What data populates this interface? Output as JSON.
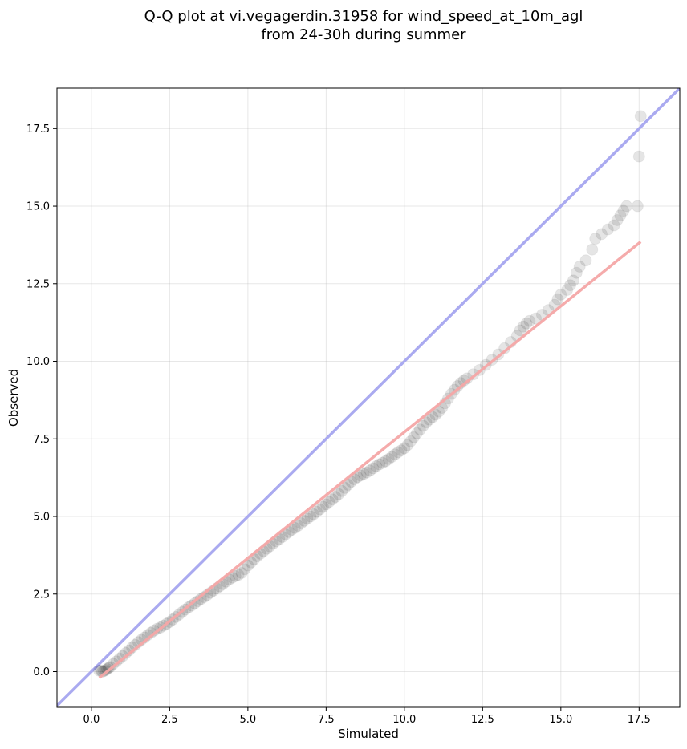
{
  "chart_data": {
    "type": "scatter",
    "title_lines": [
      "Q-Q plot at vi.vegagerdin.31958 for wind_speed_at_10m_agl",
      "from 24-30h during summer"
    ],
    "xlabel": "Simulated",
    "ylabel": "Observed",
    "xlim": [
      -1.1,
      18.8
    ],
    "ylim": [
      -1.15,
      18.8
    ],
    "x_ticks": [
      0.0,
      2.5,
      5.0,
      7.5,
      10.0,
      12.5,
      15.0,
      17.5
    ],
    "x_tick_labels": [
      "0.0",
      "2.5",
      "5.0",
      "7.5",
      "10.0",
      "12.5",
      "15.0",
      "17.5"
    ],
    "y_ticks": [
      0.0,
      2.5,
      5.0,
      7.5,
      10.0,
      12.5,
      15.0,
      17.5
    ],
    "y_tick_labels": [
      "0.0",
      "2.5",
      "5.0",
      "7.5",
      "10.0",
      "12.5",
      "15.0",
      "17.5"
    ],
    "grid": true,
    "series": [
      {
        "points": [
          [
            0.25,
            0.03
          ],
          [
            0.3,
            0.04
          ],
          [
            0.35,
            0.0
          ],
          [
            0.4,
            0.02
          ],
          [
            0.45,
            0.05
          ],
          [
            0.5,
            0.08
          ],
          [
            0.55,
            0.12
          ],
          [
            0.6,
            0.15
          ],
          [
            0.7,
            0.25
          ],
          [
            0.8,
            0.33
          ],
          [
            0.9,
            0.42
          ],
          [
            1.0,
            0.5
          ],
          [
            1.1,
            0.6
          ],
          [
            1.2,
            0.68
          ],
          [
            1.3,
            0.78
          ],
          [
            1.4,
            0.86
          ],
          [
            1.5,
            0.95
          ],
          [
            1.6,
            1.03
          ],
          [
            1.7,
            1.1
          ],
          [
            1.8,
            1.18
          ],
          [
            1.9,
            1.25
          ],
          [
            2.0,
            1.32
          ],
          [
            2.1,
            1.38
          ],
          [
            2.2,
            1.42
          ],
          [
            2.3,
            1.48
          ],
          [
            2.4,
            1.54
          ],
          [
            2.5,
            1.6
          ],
          [
            2.6,
            1.68
          ],
          [
            2.7,
            1.76
          ],
          [
            2.8,
            1.84
          ],
          [
            2.9,
            1.92
          ],
          [
            3.0,
            2.0
          ],
          [
            3.1,
            2.07
          ],
          [
            3.2,
            2.13
          ],
          [
            3.3,
            2.2
          ],
          [
            3.4,
            2.27
          ],
          [
            3.5,
            2.34
          ],
          [
            3.6,
            2.4
          ],
          [
            3.7,
            2.47
          ],
          [
            3.8,
            2.54
          ],
          [
            3.9,
            2.61
          ],
          [
            4.0,
            2.68
          ],
          [
            4.1,
            2.75
          ],
          [
            4.2,
            2.82
          ],
          [
            4.3,
            2.9
          ],
          [
            4.4,
            2.97
          ],
          [
            4.5,
            3.03
          ],
          [
            4.6,
            3.08
          ],
          [
            4.7,
            3.12
          ],
          [
            4.8,
            3.18
          ],
          [
            4.9,
            3.3
          ],
          [
            5.0,
            3.42
          ],
          [
            5.1,
            3.52
          ],
          [
            5.2,
            3.62
          ],
          [
            5.3,
            3.72
          ],
          [
            5.4,
            3.8
          ],
          [
            5.5,
            3.88
          ],
          [
            5.6,
            3.96
          ],
          [
            5.7,
            4.04
          ],
          [
            5.8,
            4.12
          ],
          [
            5.9,
            4.2
          ],
          [
            6.0,
            4.27
          ],
          [
            6.1,
            4.34
          ],
          [
            6.2,
            4.42
          ],
          [
            6.3,
            4.5
          ],
          [
            6.4,
            4.57
          ],
          [
            6.5,
            4.63
          ],
          [
            6.6,
            4.7
          ],
          [
            6.7,
            4.78
          ],
          [
            6.8,
            4.86
          ],
          [
            6.9,
            4.93
          ],
          [
            7.0,
            5.0
          ],
          [
            7.1,
            5.07
          ],
          [
            7.2,
            5.15
          ],
          [
            7.3,
            5.23
          ],
          [
            7.4,
            5.31
          ],
          [
            7.5,
            5.39
          ],
          [
            7.6,
            5.47
          ],
          [
            7.7,
            5.55
          ],
          [
            7.8,
            5.63
          ],
          [
            7.9,
            5.72
          ],
          [
            8.0,
            5.82
          ],
          [
            8.1,
            5.92
          ],
          [
            8.2,
            6.02
          ],
          [
            8.3,
            6.12
          ],
          [
            8.4,
            6.2
          ],
          [
            8.5,
            6.27
          ],
          [
            8.6,
            6.32
          ],
          [
            8.7,
            6.37
          ],
          [
            8.8,
            6.42
          ],
          [
            8.9,
            6.48
          ],
          [
            9.0,
            6.55
          ],
          [
            9.1,
            6.62
          ],
          [
            9.2,
            6.68
          ],
          [
            9.3,
            6.73
          ],
          [
            9.4,
            6.78
          ],
          [
            9.5,
            6.85
          ],
          [
            9.6,
            6.92
          ],
          [
            9.7,
            7.0
          ],
          [
            9.8,
            7.07
          ],
          [
            9.9,
            7.13
          ],
          [
            10.0,
            7.2
          ],
          [
            10.1,
            7.3
          ],
          [
            10.2,
            7.42
          ],
          [
            10.3,
            7.55
          ],
          [
            10.4,
            7.68
          ],
          [
            10.5,
            7.8
          ],
          [
            10.6,
            7.92
          ],
          [
            10.7,
            8.03
          ],
          [
            10.8,
            8.12
          ],
          [
            10.9,
            8.2
          ],
          [
            11.0,
            8.28
          ],
          [
            11.1,
            8.38
          ],
          [
            11.2,
            8.5
          ],
          [
            11.3,
            8.65
          ],
          [
            11.4,
            8.8
          ],
          [
            11.5,
            8.95
          ],
          [
            11.6,
            9.08
          ],
          [
            11.7,
            9.2
          ],
          [
            11.8,
            9.3
          ],
          [
            11.9,
            9.38
          ],
          [
            12.0,
            9.45
          ],
          [
            12.2,
            9.58
          ],
          [
            12.4,
            9.72
          ],
          [
            12.6,
            9.88
          ],
          [
            12.8,
            10.05
          ],
          [
            13.0,
            10.22
          ],
          [
            13.2,
            10.42
          ],
          [
            13.4,
            10.62
          ],
          [
            13.6,
            10.82
          ],
          [
            13.7,
            11.0
          ],
          [
            13.8,
            11.12
          ],
          [
            13.9,
            11.22
          ],
          [
            14.0,
            11.3
          ],
          [
            14.2,
            11.38
          ],
          [
            14.4,
            11.5
          ],
          [
            14.6,
            11.65
          ],
          [
            14.8,
            11.82
          ],
          [
            14.9,
            12.0
          ],
          [
            15.0,
            12.15
          ],
          [
            15.2,
            12.3
          ],
          [
            15.3,
            12.45
          ],
          [
            15.4,
            12.6
          ],
          [
            15.5,
            12.85
          ],
          [
            15.6,
            13.05
          ],
          [
            15.8,
            13.25
          ],
          [
            16.0,
            13.6
          ],
          [
            16.1,
            13.95
          ],
          [
            16.3,
            14.1
          ],
          [
            16.5,
            14.25
          ],
          [
            16.7,
            14.38
          ],
          [
            16.8,
            14.55
          ],
          [
            16.9,
            14.7
          ],
          [
            17.0,
            14.85
          ],
          [
            17.1,
            15.0
          ],
          [
            17.45,
            15.0
          ],
          [
            17.5,
            16.6
          ],
          [
            17.55,
            17.9
          ]
        ]
      }
    ],
    "reference_line": {
      "from": [
        -1.1,
        -1.1
      ],
      "to": [
        18.8,
        18.8
      ],
      "color": "#aaaaf0"
    },
    "fit_line": {
      "from": [
        0.25,
        -0.2
      ],
      "to": [
        17.55,
        13.85
      ],
      "color": "#f4a6a6"
    },
    "point_color": "#000000"
  }
}
